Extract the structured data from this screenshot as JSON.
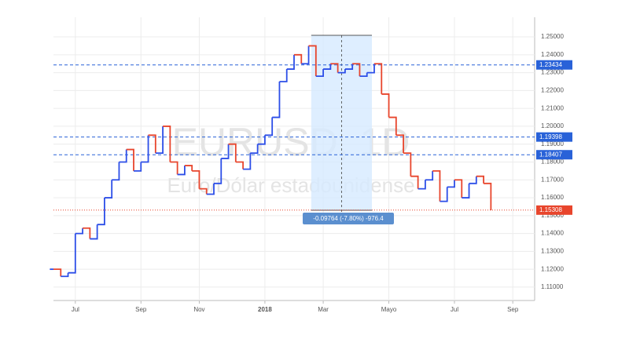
{
  "chart_data": {
    "type": "line",
    "title": "EURUSD, 1D",
    "subtitle": "Euro/Dólar estadounidense",
    "categories": [
      null,
      null,
      null,
      "Jul",
      null,
      null,
      null,
      null,
      null,
      null,
      null,
      null,
      "Sep",
      null,
      null,
      null,
      null,
      null,
      null,
      null,
      "Nov",
      null,
      null,
      null,
      null,
      null,
      null,
      null,
      null,
      "2018",
      null,
      null,
      null,
      null,
      null,
      null,
      null,
      "Mar",
      null,
      null,
      null,
      null,
      null,
      null,
      null,
      null,
      "Mayo",
      null,
      null,
      null,
      null,
      null,
      null,
      null,
      null,
      "Jul",
      null,
      null,
      null,
      null,
      null,
      null,
      null,
      "Sep",
      null,
      null,
      null
    ],
    "values": [
      1.12,
      1.116,
      1.118,
      1.14,
      1.143,
      1.137,
      1.145,
      1.16,
      1.17,
      1.18,
      1.187,
      1.175,
      1.18,
      1.195,
      1.185,
      1.2,
      1.18,
      1.173,
      1.178,
      1.175,
      1.165,
      1.162,
      1.168,
      1.182,
      1.19,
      1.18,
      1.176,
      1.185,
      1.19,
      1.195,
      1.205,
      1.225,
      1.232,
      1.24,
      1.235,
      1.245,
      1.228,
      1.232,
      1.235,
      1.23,
      1.232,
      1.235,
      1.228,
      1.23,
      1.235,
      1.218,
      1.205,
      1.195,
      1.185,
      1.172,
      1.165,
      1.17,
      1.175,
      1.158,
      1.166,
      1.17,
      1.16,
      1.168,
      1.172,
      1.168,
      1.153,
      null,
      null,
      null,
      null,
      null,
      null
    ],
    "up_color": "#2c4ee8",
    "down_color": "#e8452c",
    "ylim": [
      1.1025,
      1.261
    ],
    "yticks": [
      {
        "value": 1.11,
        "label": "1.11000"
      },
      {
        "value": 1.12,
        "label": "1.12000"
      },
      {
        "value": 1.13,
        "label": "1.13000"
      },
      {
        "value": 1.14,
        "label": "1.14000"
      },
      {
        "value": 1.15,
        "label": "1.15000"
      },
      {
        "value": 1.16,
        "label": "1.16000"
      },
      {
        "value": 1.17,
        "label": "1.17000"
      },
      {
        "value": 1.18,
        "label": "1.18000"
      },
      {
        "value": 1.19,
        "label": "1.19000"
      },
      {
        "value": 1.2,
        "label": "1.20000"
      },
      {
        "value": 1.21,
        "label": "1.21000"
      },
      {
        "value": 1.22,
        "label": "1.22000"
      },
      {
        "value": 1.23,
        "label": "1.23000"
      },
      {
        "value": 1.24,
        "label": "1.24000"
      },
      {
        "value": 1.25,
        "label": "1.25000"
      }
    ],
    "grid": true,
    "price_lines": [
      {
        "value": 1.23434,
        "color": "#2962d8",
        "style": "dashed"
      },
      {
        "value": 1.19398,
        "color": "#2962d8",
        "style": "dashed"
      },
      {
        "value": 1.18407,
        "color": "#2962d8",
        "style": "dashed"
      },
      {
        "value": 1.15308,
        "color": "#e8452c",
        "style": "dotted"
      }
    ],
    "annotation": "-0.09764 (-7.80%) -976.4"
  }
}
